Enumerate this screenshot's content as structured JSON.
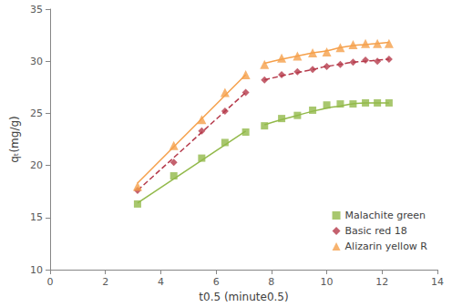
{
  "chart_data": {
    "type": "scatter",
    "xlabel": "t0.5 (minute0.5)",
    "ylabel": "qₜ(mg/g)",
    "xlim": [
      0,
      14
    ],
    "xticks": [
      0,
      2,
      4,
      6,
      8,
      10,
      12,
      14
    ],
    "ylim": [
      10,
      35
    ],
    "yticks": [
      10,
      15,
      20,
      25,
      30,
      35
    ],
    "grid": false,
    "legend": "lower right",
    "x": [
      3.16,
      4.47,
      5.48,
      6.32,
      7.07,
      7.75,
      8.37,
      8.94,
      9.49,
      10.0,
      10.49,
      10.95,
      11.4,
      11.83,
      12.25
    ],
    "series": [
      {
        "name": "Malachite green",
        "color": "#92b94a",
        "marker": "square",
        "line_style": "solid",
        "values": [
          16.3,
          19.0,
          20.7,
          22.2,
          23.2,
          23.8,
          24.5,
          24.8,
          25.3,
          25.8,
          25.9,
          25.9,
          26.0,
          26.0,
          26.0
        ],
        "fit_lines": [
          {
            "x": [
              3.16,
              7.07
            ],
            "values": [
              16.4,
              23.3
            ]
          },
          {
            "x": [
              7.75,
              8.37,
              8.94,
              9.49,
              10.0,
              10.49,
              10.95,
              11.4,
              11.83,
              12.25
            ],
            "values": [
              23.9,
              24.4,
              24.8,
              25.2,
              25.5,
              25.7,
              25.9,
              26.0,
              26.0,
              26.0
            ]
          }
        ]
      },
      {
        "name": "Basic red 18",
        "color": "#b5394a",
        "marker": "diamond",
        "line_style": "dashed",
        "values": [
          17.6,
          20.3,
          23.3,
          25.2,
          27.0,
          28.2,
          28.7,
          29.0,
          29.2,
          29.5,
          29.7,
          29.9,
          30.1,
          30.0,
          30.2
        ],
        "fit_lines": [
          {
            "x": [
              3.16,
              7.07
            ],
            "values": [
              17.6,
              27.0
            ]
          },
          {
            "x": [
              7.75,
              8.37,
              8.94,
              9.49,
              10.0,
              10.49,
              10.95,
              11.4,
              11.83,
              12.25
            ],
            "values": [
              28.2,
              28.6,
              28.9,
              29.2,
              29.5,
              29.7,
              29.9,
              30.0,
              30.1,
              30.2
            ]
          }
        ]
      },
      {
        "name": "Alizarin yellow R",
        "color": "#f5a04b",
        "marker": "triangle",
        "line_style": "solid",
        "values": [
          18.0,
          21.9,
          24.4,
          27.0,
          28.7,
          29.7,
          30.3,
          30.5,
          30.8,
          30.9,
          31.3,
          31.6,
          31.7,
          31.7,
          31.7
        ],
        "fit_lines": [
          {
            "x": [
              3.16,
              7.07
            ],
            "values": [
              18.3,
              28.7
            ]
          },
          {
            "x": [
              7.75,
              8.37,
              8.94,
              9.49,
              10.0,
              10.49,
              10.95,
              11.4,
              11.83,
              12.25
            ],
            "values": [
              29.8,
              30.2,
              30.5,
              30.8,
              31.0,
              31.3,
              31.5,
              31.6,
              31.7,
              31.8
            ]
          }
        ]
      }
    ]
  }
}
